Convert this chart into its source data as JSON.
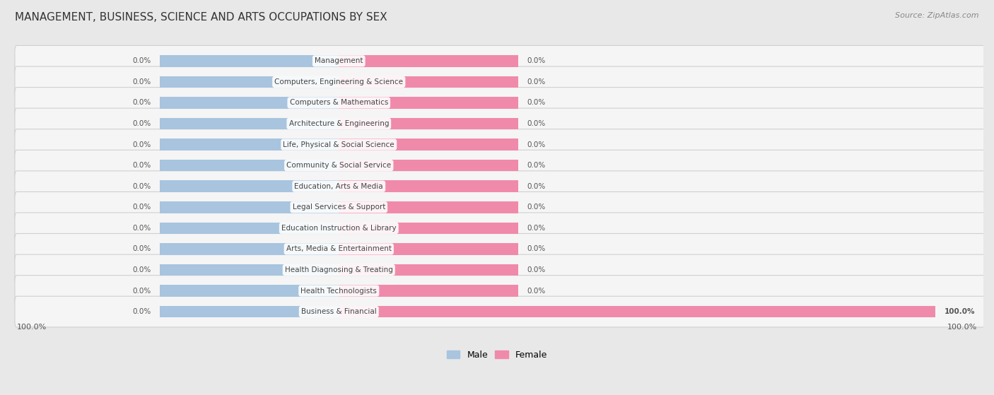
{
  "title": "MANAGEMENT, BUSINESS, SCIENCE AND ARTS OCCUPATIONS BY SEX",
  "source": "Source: ZipAtlas.com",
  "categories": [
    "Management",
    "Computers, Engineering & Science",
    "Computers & Mathematics",
    "Architecture & Engineering",
    "Life, Physical & Social Science",
    "Community & Social Service",
    "Education, Arts & Media",
    "Legal Services & Support",
    "Education Instruction & Library",
    "Arts, Media & Entertainment",
    "Health Diagnosing & Treating",
    "Health Technologists",
    "Business & Financial"
  ],
  "male_values": [
    0.0,
    0.0,
    0.0,
    0.0,
    0.0,
    0.0,
    0.0,
    0.0,
    0.0,
    0.0,
    0.0,
    0.0,
    0.0
  ],
  "female_values": [
    0.0,
    0.0,
    0.0,
    0.0,
    0.0,
    0.0,
    0.0,
    0.0,
    0.0,
    0.0,
    0.0,
    0.0,
    100.0
  ],
  "male_color": "#a8c4de",
  "female_color": "#f08aaa",
  "background_color": "#e8e8e8",
  "row_bg_color": "#f5f5f5",
  "row_edge_color": "#d0d0d0",
  "label_left_value": "100.0%",
  "label_right_value": "100.0%",
  "x_max": 100,
  "default_bar_width": 30,
  "legend_male": "Male",
  "legend_female": "Female"
}
